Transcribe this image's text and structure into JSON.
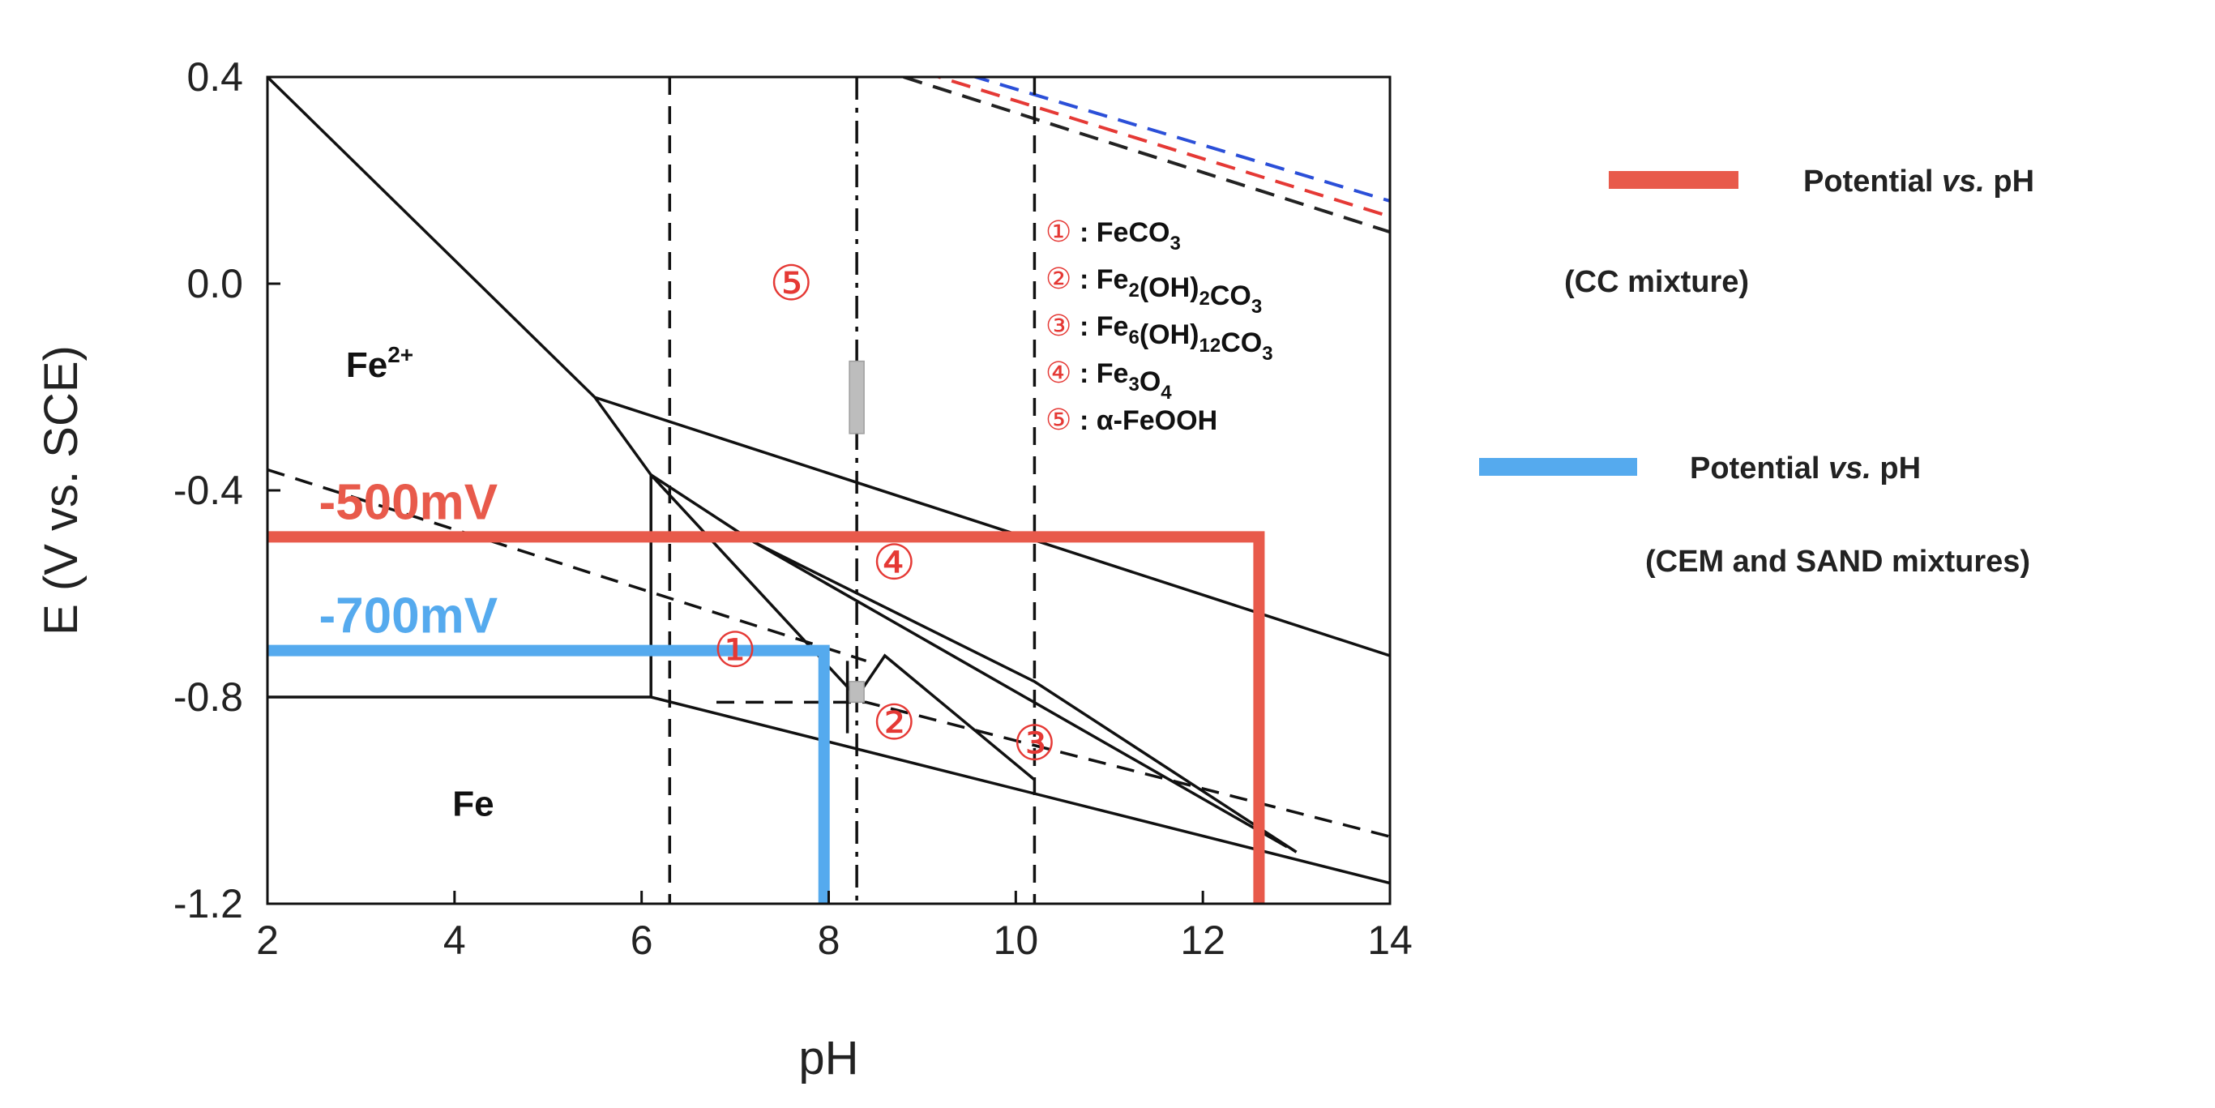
{
  "chart_data": {
    "type": "line",
    "title": "",
    "xlabel": "pH",
    "ylabel": "E (V vs. SCE)",
    "xlim": [
      2,
      14
    ],
    "ylim": [
      -1.2,
      0.4
    ],
    "x_ticks": [
      "2",
      "4",
      "6",
      "8",
      "10",
      "12",
      "14"
    ],
    "y_ticks": [
      "0.4",
      "0.0",
      "-0.4",
      "-0.8",
      "-1.2"
    ],
    "y_tick_values": [
      0.4,
      0.0,
      -0.4,
      -0.8,
      -1.2
    ],
    "x_tick_values": [
      2,
      4,
      6,
      8,
      10,
      12,
      14
    ],
    "boundary_lines_solid": [
      {
        "x": [
          2,
          5.5,
          14
        ],
        "y": [
          0.4,
          -0.22,
          -0.72
        ]
      },
      {
        "x": [
          5.5,
          6.1
        ],
        "y": [
          -0.22,
          -0.37
        ]
      },
      {
        "x": [
          6.1,
          7.2,
          12.9
        ],
        "y": [
          -0.37,
          -0.5,
          -1.09
        ]
      },
      {
        "x": [
          7.2,
          10.2,
          13.0
        ],
        "y": [
          -0.5,
          -0.77,
          -1.1
        ]
      },
      {
        "x": [
          6.1,
          8.3,
          8.6,
          10.2
        ],
        "y": [
          -0.37,
          -0.8,
          -0.72,
          -0.96
        ]
      },
      {
        "x": [
          2,
          6.1,
          14
        ],
        "y": [
          -0.8,
          -0.8,
          -1.16
        ]
      },
      {
        "x": [
          6.1,
          6.1
        ],
        "y": [
          -0.8,
          -0.37
        ]
      },
      {
        "x": [
          8.2,
          8.2
        ],
        "y": [
          -0.87,
          -0.73
        ]
      }
    ],
    "boundary_lines_dashed": [
      {
        "x": [
          2,
          8.4
        ],
        "y": [
          -0.36,
          -0.73
        ]
      },
      {
        "x": [
          6.8,
          8.4,
          14
        ],
        "y": [
          -0.81,
          -0.81,
          -1.07
        ]
      },
      {
        "x": [
          6.3,
          6.3
        ],
        "y": [
          0.4,
          -1.2
        ]
      },
      {
        "x": [
          10.2,
          10.2
        ],
        "y": [
          0.4,
          -1.2
        ]
      }
    ],
    "dashdot_line": {
      "x": [
        8.3,
        8.3
      ],
      "y": [
        0.4,
        -1.2
      ]
    },
    "water_lines": [
      {
        "color": "#2b4fd8",
        "x": [
          9.2,
          14
        ],
        "y": [
          0.42,
          0.16
        ]
      },
      {
        "color": "#e53935",
        "x": [
          9.0,
          14
        ],
        "y": [
          0.41,
          0.13
        ]
      },
      {
        "color": "#222222",
        "x": [
          8.8,
          14
        ],
        "y": [
          0.4,
          0.1
        ]
      }
    ],
    "gray_bars": [
      {
        "x": 8.3,
        "y": [
          -0.29,
          -0.15
        ]
      },
      {
        "x": 8.3,
        "y": [
          -0.81,
          -0.77
        ]
      }
    ],
    "series": [
      {
        "name": "Potential vs. pH (CC mixture)",
        "color": "#e85a4b",
        "x": [
          2,
          12.6,
          12.6
        ],
        "y": [
          -0.49,
          -0.49,
          -1.2
        ],
        "label": "-500mV"
      },
      {
        "name": "Potential vs. pH (CEM and SAND mixtures)",
        "color": "#55aaee",
        "x": [
          2,
          7.95,
          7.95
        ],
        "y": [
          -0.71,
          -0.71,
          -1.2
        ],
        "label": "-700mV"
      }
    ],
    "regions": [
      {
        "label": "Fe",
        "sup": "2+",
        "x": 3.2,
        "y": -0.18
      },
      {
        "label": "Fe",
        "sup": "",
        "x": 4.2,
        "y": -1.03
      }
    ],
    "region_numbers": [
      {
        "label": "⑤",
        "x": 7.6,
        "y": 0.0
      },
      {
        "label": "④",
        "x": 8.7,
        "y": -0.54
      },
      {
        "label": "①",
        "x": 7.0,
        "y": -0.71
      },
      {
        "label": "②",
        "x": 8.7,
        "y": -0.85
      },
      {
        "label": "③",
        "x": 10.2,
        "y": -0.89
      }
    ],
    "key": [
      {
        "num": "①",
        "label": "FeCO",
        "sub1": "",
        "mid": "",
        "sub2": "3"
      },
      {
        "num": "②",
        "label": "Fe",
        "sub1": "2",
        "mid": "(OH)",
        "sub2": "2",
        "tail": "CO",
        "sub3": "3"
      },
      {
        "num": "③",
        "label": "Fe",
        "sub1": "6",
        "mid": "(OH)",
        "sub2": "12",
        "tail": "CO",
        "sub3": "3"
      },
      {
        "num": "④",
        "label": "Fe",
        "sub1": "3",
        "mid": "O",
        "sub2": "4"
      },
      {
        "num": "⑤",
        "label": "α-FeOOH"
      }
    ],
    "key_separator": ": ",
    "legend": {
      "items": [
        {
          "line1_a": "Potential ",
          "line1_b": "vs.",
          "line1_c": " pH",
          "line2": "(CC mixture)",
          "color": "#e85a4b"
        },
        {
          "line1_a": "Potential ",
          "line1_b": "vs.",
          "line1_c": " pH",
          "line2": "(CEM and SAND mixtures)",
          "color": "#55aaee"
        }
      ]
    }
  }
}
